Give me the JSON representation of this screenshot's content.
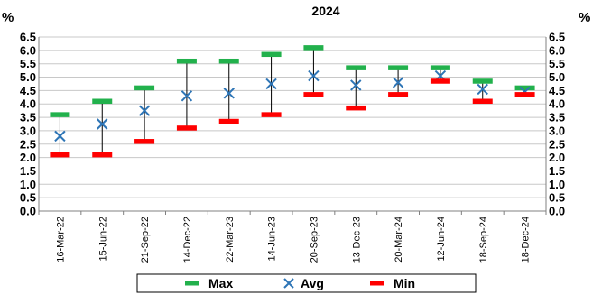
{
  "chart_data": {
    "type": "high-low-avg",
    "title": "2024",
    "y_unit_left": "%",
    "y_unit_right": "%",
    "ylim": [
      0,
      6.5
    ],
    "ystep": 0.5,
    "ytick_labels": [
      "0.0",
      "0.5",
      "1.0",
      "1.5",
      "2.0",
      "2.5",
      "3.0",
      "3.5",
      "4.0",
      "4.5",
      "5.0",
      "5.5",
      "6.0",
      "6.5"
    ],
    "grid": true,
    "legend_position": "bottom",
    "categories": [
      "16-Mar-22",
      "15-Jun-22",
      "21-Sep-22",
      "14-Dec-22",
      "22-Mar-23",
      "14-Jun-23",
      "20-Sep-23",
      "13-Dec-23",
      "20-Mar-24",
      "12-Jun-24",
      "18-Sep-24",
      "18-Dec-24"
    ],
    "series": [
      {
        "name": "Max",
        "color": "#22b14c",
        "marker": "dash",
        "values": [
          3.6,
          4.1,
          4.6,
          5.6,
          5.6,
          5.85,
          6.1,
          5.35,
          5.35,
          5.35,
          4.85,
          4.6
        ]
      },
      {
        "name": "Avg",
        "color": "#2e75b6",
        "marker": "x",
        "values": [
          2.8,
          3.25,
          3.75,
          4.3,
          4.4,
          4.75,
          5.05,
          4.7,
          4.8,
          5.05,
          4.55,
          4.45
        ]
      },
      {
        "name": "Min",
        "color": "#ff0000",
        "marker": "dash",
        "values": [
          2.1,
          2.1,
          2.6,
          3.1,
          3.35,
          3.6,
          4.35,
          3.85,
          4.35,
          4.85,
          4.1,
          4.35
        ]
      }
    ]
  }
}
